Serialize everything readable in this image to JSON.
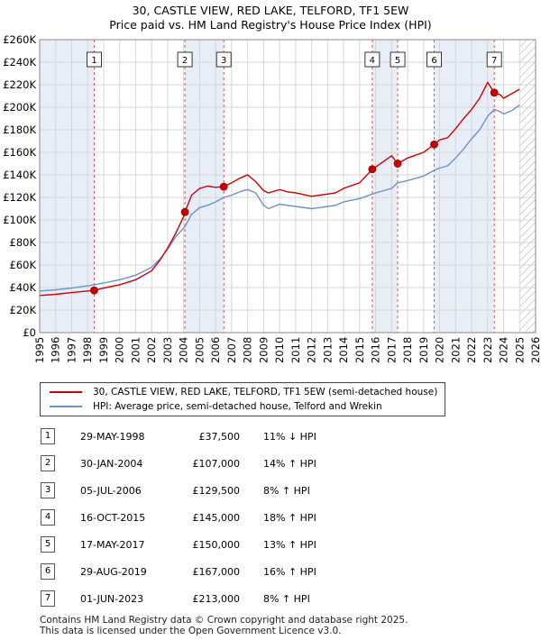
{
  "title_line1": "30, CASTLE VIEW, RED LAKE, TELFORD, TF1 5EW",
  "title_line2": "Price paid vs. HM Land Registry's House Price Index (HPI)",
  "colors": {
    "price": "#cc0000",
    "hpi": "#6b93c9",
    "shade": "#e8eef8",
    "grid": "#d6d6d6",
    "vline": "#dd5555",
    "hatch": "#b0b0b0"
  },
  "legend": {
    "price_label": "30, CASTLE VIEW, RED LAKE, TELFORD, TF1 5EW (semi-detached house)",
    "hpi_label": "HPI: Average price, semi-detached house, Telford and Wrekin"
  },
  "chart_data": {
    "type": "line",
    "xlim": [
      1995,
      2026
    ],
    "ylim": [
      0,
      260000
    ],
    "y_ticks": [
      0,
      20000,
      40000,
      60000,
      80000,
      100000,
      120000,
      140000,
      160000,
      180000,
      200000,
      220000,
      240000,
      260000
    ],
    "y_tick_labels": [
      "£0",
      "£20K",
      "£40K",
      "£60K",
      "£80K",
      "£100K",
      "£120K",
      "£140K",
      "£160K",
      "£180K",
      "£200K",
      "£220K",
      "£240K",
      "£260K"
    ],
    "x_ticks": [
      1995,
      1996,
      1997,
      1998,
      1999,
      2000,
      2001,
      2002,
      2003,
      2004,
      2005,
      2006,
      2007,
      2008,
      2009,
      2010,
      2011,
      2012,
      2013,
      2014,
      2015,
      2016,
      2017,
      2018,
      2019,
      2020,
      2021,
      2022,
      2023,
      2024,
      2025,
      2026
    ],
    "x_tick_labels": [
      "1995",
      "1996",
      "1997",
      "1998",
      "1999",
      "2000",
      "2001",
      "2002",
      "2003",
      "2004",
      "2005",
      "2006",
      "2007",
      "2008",
      "2009",
      "2010",
      "2011",
      "2012",
      "2013",
      "2014",
      "2015",
      "2016",
      "2017",
      "2018",
      "2019",
      "2020",
      "2021",
      "2022",
      "2023",
      "2024",
      "2025",
      "2026"
    ],
    "shaded_regions": [
      [
        1995,
        1998.41
      ],
      [
        2004.08,
        2006.51
      ],
      [
        2015.79,
        2017.38
      ],
      [
        2019.66,
        2023.42
      ]
    ],
    "forecast_from": 2025.0,
    "series": [
      {
        "name": "HPI: Average price, semi-detached house, Telford and Wrekin",
        "x": [
          1995.0,
          1996.0,
          1997.0,
          1998.0,
          1998.41,
          1999.0,
          2000.0,
          2001.0,
          2002.0,
          2002.5,
          2003.0,
          2003.5,
          2004.08,
          2004.5,
          2005.0,
          2005.5,
          2006.0,
          2006.51,
          2007.0,
          2007.5,
          2008.0,
          2008.5,
          2009.0,
          2009.3,
          2010.0,
          2010.5,
          2011.0,
          2012.0,
          2012.5,
          2013.0,
          2013.5,
          2014.0,
          2015.0,
          2015.79,
          2016.0,
          2017.0,
          2017.38,
          2018.0,
          2019.0,
          2019.66,
          2020.0,
          2020.5,
          2021.0,
          2021.5,
          2022.0,
          2022.5,
          2023.0,
          2023.42,
          2023.8,
          2024.0,
          2024.5,
          2025.0
        ],
        "values": [
          37000,
          38000,
          39500,
          41500,
          42500,
          44000,
          47000,
          51000,
          58000,
          65000,
          74000,
          85000,
          94000,
          105000,
          111000,
          113000,
          116000,
          120000,
          122000,
          125000,
          127000,
          124000,
          113000,
          110000,
          114000,
          113000,
          112000,
          110000,
          111000,
          112000,
          113000,
          116000,
          119000,
          123000,
          124000,
          128000,
          133000,
          135000,
          139000,
          144000,
          146000,
          148000,
          155000,
          163000,
          172000,
          180000,
          192000,
          198000,
          196000,
          194000,
          197000,
          202000
        ]
      },
      {
        "name": "30, CASTLE VIEW, RED LAKE, TELFORD, TF1 5EW (semi-detached house)",
        "x": [
          1995.0,
          1996.0,
          1997.0,
          1998.0,
          1998.41,
          1999.0,
          2000.0,
          2001.0,
          2002.0,
          2002.5,
          2003.0,
          2003.5,
          2004.0,
          2004.08,
          2004.5,
          2005.0,
          2005.5,
          2006.0,
          2006.51,
          2007.0,
          2007.5,
          2008.0,
          2008.5,
          2009.0,
          2009.3,
          2010.0,
          2010.5,
          2011.0,
          2012.0,
          2012.5,
          2013.0,
          2013.5,
          2014.0,
          2015.0,
          2015.79,
          2016.0,
          2017.0,
          2017.38,
          2018.0,
          2019.0,
          2019.66,
          2020.0,
          2020.5,
          2021.0,
          2021.5,
          2022.0,
          2022.5,
          2023.0,
          2023.42,
          2023.8,
          2024.0,
          2024.5,
          2025.0
        ],
        "values": [
          33000,
          34000,
          35500,
          37000,
          37500,
          39500,
          42500,
          47000,
          55000,
          64000,
          75000,
          88000,
          103000,
          107000,
          122000,
          128000,
          130000,
          129000,
          129500,
          133000,
          137000,
          140000,
          134000,
          126000,
          124000,
          127000,
          125000,
          124000,
          121000,
          122000,
          123000,
          124000,
          128000,
          133000,
          145000,
          147000,
          157000,
          150000,
          155000,
          160000,
          167000,
          171000,
          173000,
          181000,
          190000,
          198000,
          208000,
          222000,
          213000,
          211000,
          208000,
          212000,
          216000
        ]
      }
    ],
    "sales": [
      {
        "label": "1",
        "x": 1998.41,
        "value": 37500
      },
      {
        "label": "2",
        "x": 2004.08,
        "value": 107000
      },
      {
        "label": "3",
        "x": 2006.51,
        "value": 129500
      },
      {
        "label": "4",
        "x": 2015.79,
        "value": 145000
      },
      {
        "label": "5",
        "x": 2017.38,
        "value": 150000
      },
      {
        "label": "6",
        "x": 2019.66,
        "value": 167000
      },
      {
        "label": "7",
        "x": 2023.42,
        "value": 213000
      }
    ]
  },
  "table": [
    {
      "num": "1",
      "date": "29-MAY-1998",
      "price": "£37,500",
      "hpi": "11% ↓ HPI"
    },
    {
      "num": "2",
      "date": "30-JAN-2004",
      "price": "£107,000",
      "hpi": "14% ↑ HPI"
    },
    {
      "num": "3",
      "date": "05-JUL-2006",
      "price": "£129,500",
      "hpi": "8% ↑ HPI"
    },
    {
      "num": "4",
      "date": "16-OCT-2015",
      "price": "£145,000",
      "hpi": "18% ↑ HPI"
    },
    {
      "num": "5",
      "date": "17-MAY-2017",
      "price": "£150,000",
      "hpi": "13% ↑ HPI"
    },
    {
      "num": "6",
      "date": "29-AUG-2019",
      "price": "£167,000",
      "hpi": "16% ↑ HPI"
    },
    {
      "num": "7",
      "date": "01-JUN-2023",
      "price": "£213,000",
      "hpi": "8% ↑ HPI"
    }
  ],
  "footer_line1": "Contains HM Land Registry data © Crown copyright and database right 2025.",
  "footer_line2": "This data is licensed under the Open Government Licence v3.0."
}
